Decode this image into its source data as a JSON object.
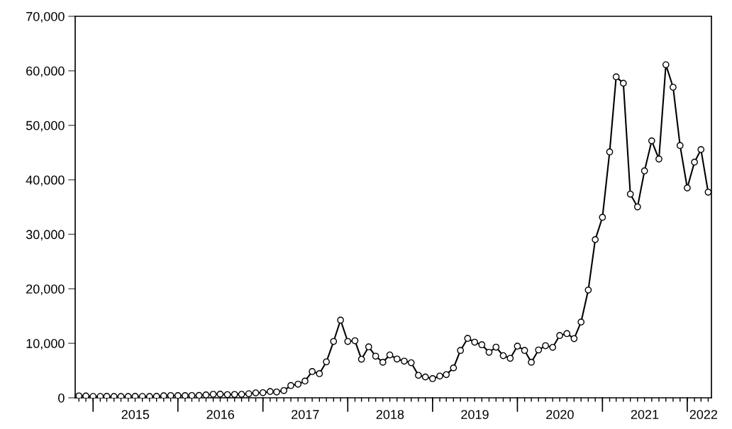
{
  "chart_data": {
    "type": "line",
    "x": [
      "2014-11",
      "2014-12",
      "2015-01",
      "2015-02",
      "2015-03",
      "2015-04",
      "2015-05",
      "2015-06",
      "2015-07",
      "2015-08",
      "2015-09",
      "2015-10",
      "2015-11",
      "2015-12",
      "2016-01",
      "2016-02",
      "2016-03",
      "2016-04",
      "2016-05",
      "2016-06",
      "2016-07",
      "2016-08",
      "2016-09",
      "2016-10",
      "2016-11",
      "2016-12",
      "2017-01",
      "2017-02",
      "2017-03",
      "2017-04",
      "2017-05",
      "2017-06",
      "2017-07",
      "2017-08",
      "2017-09",
      "2017-10",
      "2017-11",
      "2017-12",
      "2018-01",
      "2018-02",
      "2018-03",
      "2018-04",
      "2018-05",
      "2018-06",
      "2018-07",
      "2018-08",
      "2018-09",
      "2018-10",
      "2018-11",
      "2018-12",
      "2019-01",
      "2019-02",
      "2019-03",
      "2019-04",
      "2019-05",
      "2019-06",
      "2019-07",
      "2019-08",
      "2019-09",
      "2019-10",
      "2019-11",
      "2019-12",
      "2020-01",
      "2020-02",
      "2020-03",
      "2020-04",
      "2020-05",
      "2020-06",
      "2020-07",
      "2020-08",
      "2020-09",
      "2020-10",
      "2020-11",
      "2020-12",
      "2021-01",
      "2021-02",
      "2021-03",
      "2021-04",
      "2021-05",
      "2021-06",
      "2021-07",
      "2021-08",
      "2021-09",
      "2021-10",
      "2021-11",
      "2021-12",
      "2022-01",
      "2022-02",
      "2022-03",
      "2022-04"
    ],
    "series": [
      {
        "color": "#000000",
        "values": [
          350,
          340,
          250,
          250,
          270,
          230,
          240,
          240,
          280,
          250,
          240,
          270,
          360,
          420,
          410,
          410,
          420,
          440,
          530,
          650,
          670,
          580,
          610,
          640,
          740,
          900,
          940,
          1150,
          1070,
          1330,
          2250,
          2500,
          3070,
          4820,
          4430,
          6600,
          10340,
          14250,
          10340,
          10470,
          7080,
          9340,
          7640,
          6520,
          7860,
          7120,
          6730,
          6430,
          4120,
          3820,
          3520,
          3990,
          4250,
          5480,
          8690,
          10900,
          10210,
          9730,
          8350,
          9300,
          7730,
          7250,
          9470,
          8690,
          6520,
          8780,
          9560,
          9260,
          11420,
          11780,
          10860,
          13900,
          19770,
          29030,
          33120,
          45120,
          58890,
          57720,
          37370,
          35030,
          41640,
          47150,
          43810,
          61110,
          56990,
          46290,
          38510,
          43240,
          45550,
          37730
        ]
      }
    ],
    "xlim": [
      "2014-10-16",
      "2022-04-15"
    ],
    "xticks": [
      {
        "value": "2014-11",
        "label": null
      },
      {
        "value": "2014-12",
        "label": null
      },
      {
        "value": "2015-01",
        "label": null
      },
      {
        "value": "2015-02",
        "label": null
      },
      {
        "value": "2015-03",
        "label": null
      },
      {
        "value": "2015-04",
        "label": null
      },
      {
        "value": "2015-05",
        "label": null
      },
      {
        "value": "2015-06",
        "label": null
      },
      {
        "value": "2015-07",
        "label": null
      },
      {
        "value": "2015-08",
        "label": null
      },
      {
        "value": "2015-09",
        "label": null
      },
      {
        "value": "2015-10",
        "label": null
      },
      {
        "value": "2015-11",
        "label": null
      },
      {
        "value": "2015-12",
        "label": null
      },
      {
        "value": "2016-01",
        "label": null
      },
      {
        "value": "2016-02",
        "label": null
      },
      {
        "value": "2016-03",
        "label": null
      },
      {
        "value": "2016-04",
        "label": null
      },
      {
        "value": "2016-05",
        "label": null
      },
      {
        "value": "2016-06",
        "label": null
      },
      {
        "value": "2016-07",
        "label": null
      },
      {
        "value": "2016-08",
        "label": null
      },
      {
        "value": "2016-09",
        "label": null
      },
      {
        "value": "2016-10",
        "label": null
      },
      {
        "value": "2016-11",
        "label": null
      },
      {
        "value": "2016-12",
        "label": null
      },
      {
        "value": "2017-01",
        "label": null
      },
      {
        "value": "2017-02",
        "label": null
      },
      {
        "value": "2017-03",
        "label": null
      },
      {
        "value": "2017-04",
        "label": null
      },
      {
        "value": "2017-05",
        "label": null
      },
      {
        "value": "2017-06",
        "label": null
      },
      {
        "value": "2017-07",
        "label": null
      },
      {
        "value": "2017-08",
        "label": null
      },
      {
        "value": "2017-09",
        "label": null
      },
      {
        "value": "2017-10",
        "label": null
      },
      {
        "value": "2017-11",
        "label": null
      },
      {
        "value": "2017-12",
        "label": null
      },
      {
        "value": "2018-01",
        "label": null
      },
      {
        "value": "2018-02",
        "label": null
      },
      {
        "value": "2018-03",
        "label": null
      },
      {
        "value": "2018-04",
        "label": null
      },
      {
        "value": "2018-05",
        "label": null
      },
      {
        "value": "2018-06",
        "label": null
      },
      {
        "value": "2018-07",
        "label": null
      },
      {
        "value": "2018-08",
        "label": null
      },
      {
        "value": "2018-09",
        "label": null
      },
      {
        "value": "2018-10",
        "label": null
      },
      {
        "value": "2018-11",
        "label": null
      },
      {
        "value": "2018-12",
        "label": null
      },
      {
        "value": "2019-01",
        "label": null
      },
      {
        "value": "2019-02",
        "label": null
      },
      {
        "value": "2019-03",
        "label": null
      },
      {
        "value": "2019-04",
        "label": null
      },
      {
        "value": "2019-05",
        "label": null
      },
      {
        "value": "2019-06",
        "label": null
      },
      {
        "value": "2019-07",
        "label": null
      },
      {
        "value": "2019-08",
        "label": null
      },
      {
        "value": "2019-09",
        "label": null
      },
      {
        "value": "2019-10",
        "label": null
      },
      {
        "value": "2019-11",
        "label": null
      },
      {
        "value": "2019-12",
        "label": null
      },
      {
        "value": "2020-01",
        "label": null
      },
      {
        "value": "2020-02",
        "label": null
      },
      {
        "value": "2020-03",
        "label": null
      },
      {
        "value": "2020-04",
        "label": null
      },
      {
        "value": "2020-05",
        "label": null
      },
      {
        "value": "2020-06",
        "label": null
      },
      {
        "value": "2020-07",
        "label": null
      },
      {
        "value": "2020-08",
        "label": null
      },
      {
        "value": "2020-09",
        "label": null
      },
      {
        "value": "2020-10",
        "label": null
      },
      {
        "value": "2020-11",
        "label": null
      },
      {
        "value": "2020-12",
        "label": null
      },
      {
        "value": "2021-01",
        "label": null
      },
      {
        "value": "2021-02",
        "label": null
      },
      {
        "value": "2021-03",
        "label": null
      },
      {
        "value": "2021-04",
        "label": null
      },
      {
        "value": "2021-05",
        "label": null
      },
      {
        "value": "2021-06",
        "label": null
      },
      {
        "value": "2021-07",
        "label": null
      },
      {
        "value": "2021-08",
        "label": null
      },
      {
        "value": "2021-09",
        "label": null
      },
      {
        "value": "2021-10",
        "label": null
      },
      {
        "value": "2021-11",
        "label": null
      },
      {
        "value": "2021-12",
        "label": null
      },
      {
        "value": "2022-01",
        "label": null
      },
      {
        "value": "2022-02",
        "label": null
      },
      {
        "value": "2022-03",
        "label": null
      },
      {
        "value": "2022-04",
        "label": null
      },
      {
        "value": "2015-07-02",
        "label": "2015"
      },
      {
        "value": "2016-07-02",
        "label": "2016"
      },
      {
        "value": "2017-07-02",
        "label": "2017"
      },
      {
        "value": "2018-07-02",
        "label": "2018"
      },
      {
        "value": "2019-07-02",
        "label": "2019"
      },
      {
        "value": "2020-07-02",
        "label": "2020"
      },
      {
        "value": "2021-07-02",
        "label": "2021"
      },
      {
        "value": "2022-03-12",
        "label": "2022"
      }
    ],
    "ylim": [
      0,
      70000
    ],
    "yticks": [
      0,
      {
        "value": 10000,
        "label": "10,000"
      },
      {
        "value": 20000,
        "label": "20,000"
      },
      {
        "value": 30000,
        "label": "30,000"
      },
      {
        "value": 40000,
        "label": "40,000"
      },
      {
        "value": 50000,
        "label": "50,000"
      },
      {
        "value": 60000,
        "label": "60,000"
      },
      {
        "value": 70000,
        "label": "70,000"
      }
    ],
    "marker": "circle",
    "line_style": "solid",
    "grid": false,
    "legend": false
  }
}
